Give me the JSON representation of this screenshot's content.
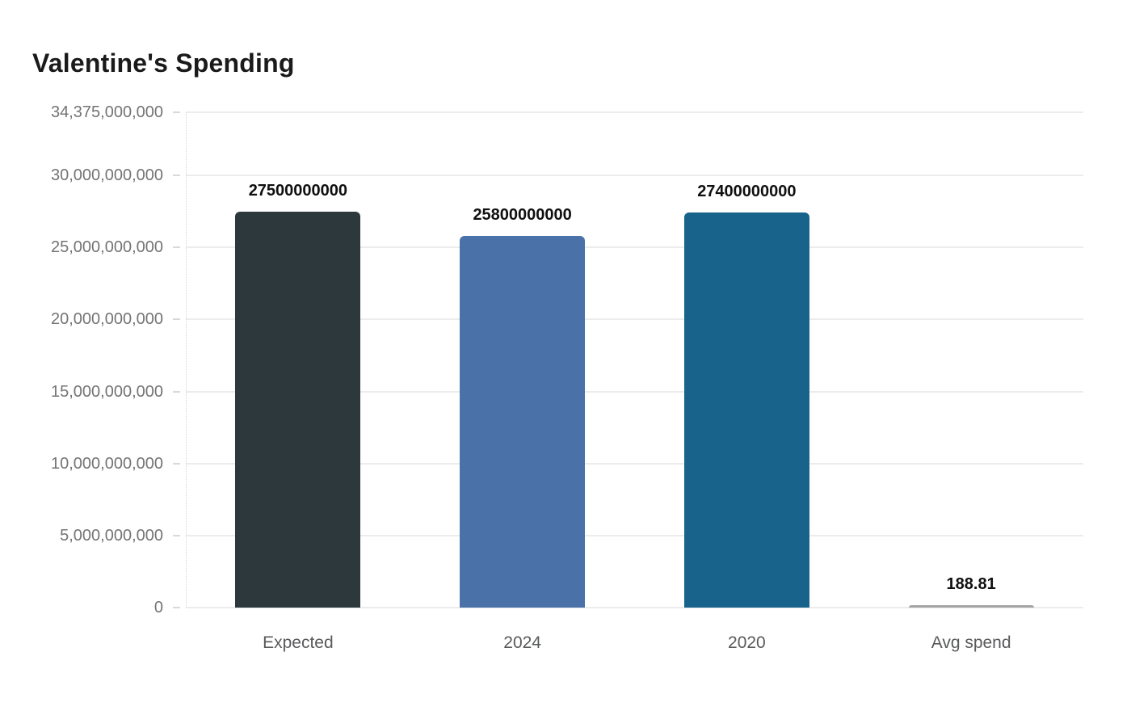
{
  "title": "Valentine's Spending",
  "colors": {
    "background": "#ffffff",
    "title": "#1a1a1a",
    "gridline": "#ececec",
    "tick": "#d9d9d9",
    "axis_dotted_line": "#d6d6d6",
    "y_tick_label": "#747474",
    "x_category_label": "#58595b",
    "value_label": "#101010"
  },
  "chart_data": {
    "type": "bar",
    "title": "Valentine's Spending",
    "categories": [
      "Expected",
      "2024",
      "2020",
      "Avg spend"
    ],
    "values": [
      27500000000,
      25800000000,
      27400000000,
      188.81
    ],
    "value_labels": [
      "27500000000",
      "25800000000",
      "27400000000",
      "188.81"
    ],
    "bar_colors": [
      "#2d383c",
      "#4b72a8",
      "#17638b",
      "#a5a5a5"
    ],
    "xlabel": "",
    "ylabel": "",
    "ylim": [
      0,
      34375000000
    ],
    "y_ticks": [
      0,
      5000000000,
      10000000000,
      15000000000,
      20000000000,
      25000000000,
      30000000000,
      34375000000
    ],
    "y_tick_labels": [
      "0",
      "5,000,000,000",
      "10,000,000,000",
      "15,000,000,000",
      "20,000,000,000",
      "25,000,000,000",
      "30,000,000,000",
      "34,375,000,000"
    ],
    "grid": true,
    "legend": false,
    "value_labels_position": "above-bars"
  }
}
